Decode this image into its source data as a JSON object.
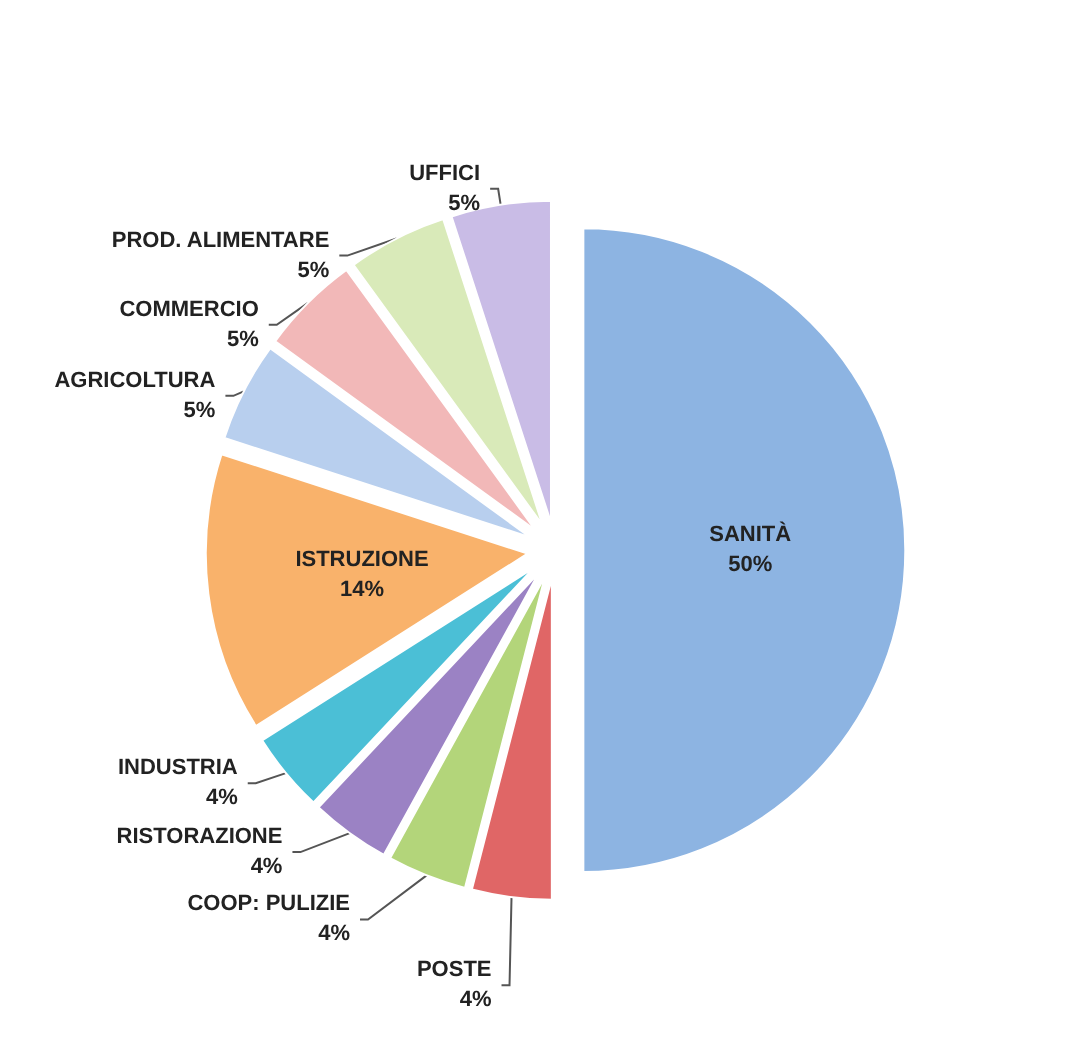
{
  "chart_data": {
    "type": "pie",
    "categories": [
      "SANITÀ",
      "POSTE",
      "COOP: PULIZIE",
      "RISTORAZIONE",
      "INDUSTRIA",
      "ISTRUZIONE",
      "AGRICOLTURA",
      "COMMERCIO",
      "PROD. ALIMENTARE",
      "UFFICI"
    ],
    "values": [
      50,
      4,
      4,
      4,
      4,
      14,
      5,
      5,
      5,
      5
    ],
    "value_labels": [
      "50%",
      "4%",
      "4%",
      "4%",
      "4%",
      "14%",
      "5%",
      "5%",
      "5%",
      "5%"
    ],
    "colors": [
      "#8db4e2",
      "#e06666",
      "#b3d57a",
      "#9b82c4",
      "#4bbfd6",
      "#f9b26b",
      "#b8cfee",
      "#f2b8b8",
      "#d9eab9",
      "#c9bce6"
    ],
    "legend": false
  }
}
